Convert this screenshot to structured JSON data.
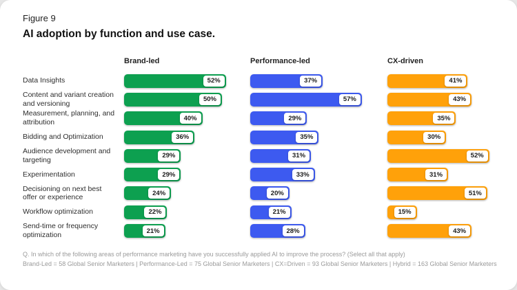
{
  "figure_label": "Figure 9",
  "title": "AI adoption by function and use case.",
  "footnotes": [
    "Q. In which of the following areas of performance marketing have you successfully applied AI to improve the process? (Select all that apply)",
    "Brand-Led = 58 Global Senior Marketers | Performance-Led = 75 Global Senior Marketers | CX=Driven = 93 Global Senior Marketers | Hybrid = 163 Global Senior Marketers"
  ],
  "chart_data": {
    "type": "bar",
    "orientation": "horizontal",
    "unit": "%",
    "title": "AI adoption by function and use case.",
    "grid": false,
    "value_labels": true,
    "legend_position": "column-headers",
    "xlim": [
      0,
      60
    ],
    "categories": [
      "Data Insights",
      "Content and variant creation and versioning",
      "Measurement, planning, and attribution",
      "Bidding and Optimization",
      "Audience development and targeting",
      "Experimentation",
      "Decisioning on next best offer or experience",
      "Workflow optimization",
      "Send-time or frequency optimization"
    ],
    "series": [
      {
        "name": "Brand-led",
        "color": "#0DA050",
        "values": [
          52,
          50,
          40,
          36,
          29,
          29,
          24,
          22,
          21
        ]
      },
      {
        "name": "Performance-led",
        "color": "#3D5AF0",
        "values": [
          37,
          57,
          29,
          35,
          31,
          33,
          20,
          21,
          28
        ]
      },
      {
        "name": "CX-driven",
        "color": "#FFA10A",
        "values": [
          41,
          43,
          35,
          30,
          52,
          31,
          51,
          15,
          43
        ]
      }
    ]
  }
}
